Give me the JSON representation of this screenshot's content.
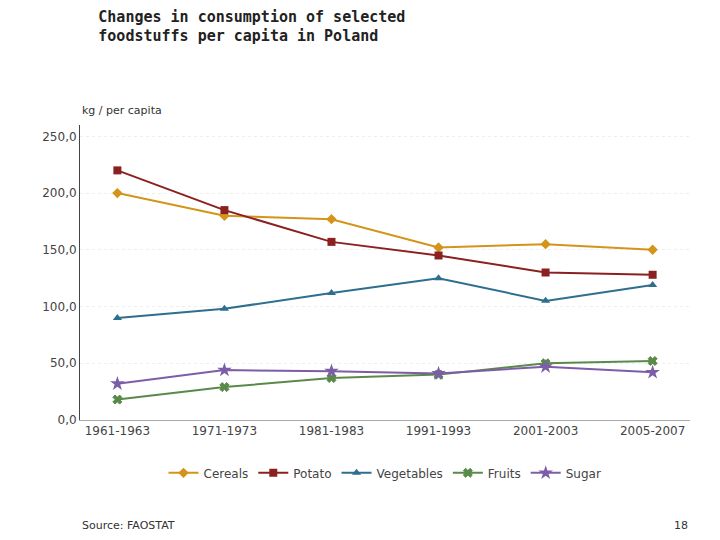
{
  "chart_data": {
    "type": "line",
    "title": "Changes in consumption of selected\nfoodstuffs per capita in Poland",
    "ylabel": "kg / per capita",
    "annotations": [
      {
        "text": "Source: FAOSTAT"
      },
      {
        "text": "18"
      }
    ],
    "categories": [
      "1961-1963",
      "1971-1973",
      "1981-1983",
      "1991-1993",
      "2001-2003",
      "2005-2007"
    ],
    "series": [
      {
        "name": "Cereals",
        "color": "#D4941A",
        "marker": "diamond",
        "values": [
          200,
          180,
          177,
          152,
          155,
          150
        ]
      },
      {
        "name": "Potato",
        "color": "#8B2020",
        "marker": "square",
        "values": [
          220,
          185,
          157,
          145,
          130,
          128
        ]
      },
      {
        "name": "Vegetables",
        "color": "#2E6E8E",
        "marker": "triangle-up",
        "values": [
          90,
          98,
          112,
          125,
          105,
          119
        ]
      },
      {
        "name": "Fruits",
        "color": "#5A8A4A",
        "marker": "x",
        "values": [
          18,
          29,
          37,
          40,
          50,
          52
        ]
      },
      {
        "name": "Sugar",
        "color": "#7B5EA7",
        "marker": "star",
        "values": [
          32,
          44,
          43,
          41,
          47,
          42
        ]
      }
    ],
    "ylim": [
      0,
      260
    ],
    "yticks": [
      {
        "value": 0,
        "label": "0,0"
      },
      {
        "value": 50,
        "label": "50,0"
      },
      {
        "value": 100,
        "label": "100,0"
      },
      {
        "value": 150,
        "label": "150,0"
      },
      {
        "value": 200,
        "label": "200,0"
      },
      {
        "value": 250,
        "label": "250,0"
      }
    ],
    "grid": true,
    "legend": "bottom"
  }
}
